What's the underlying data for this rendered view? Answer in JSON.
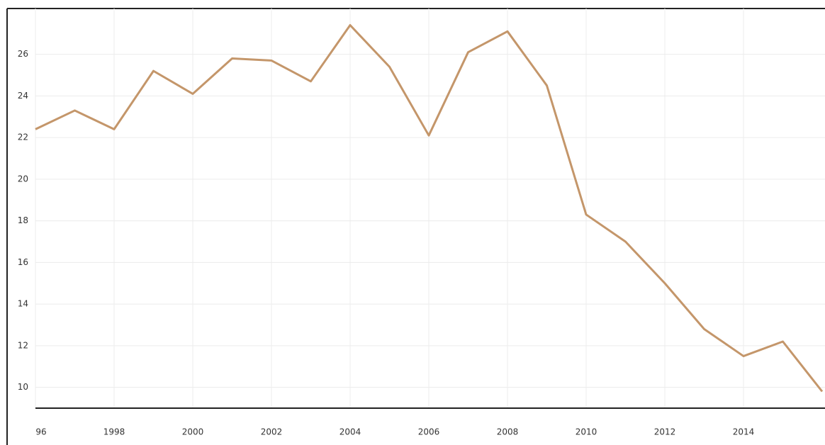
{
  "chart_data": {
    "type": "line",
    "x": [
      1996,
      1997,
      1998,
      1999,
      2000,
      2001,
      2002,
      2003,
      2004,
      2005,
      2006,
      2007,
      2008,
      2009,
      2010,
      2011,
      2012,
      2013,
      2014,
      2015,
      2016
    ],
    "values": [
      22.4,
      23.3,
      22.4,
      25.2,
      24.1,
      25.8,
      25.7,
      24.7,
      27.4,
      25.4,
      22.1,
      26.1,
      27.1,
      24.5,
      18.3,
      17.0,
      15.0,
      12.8,
      11.5,
      12.2,
      9.8
    ],
    "color": "#c4966a",
    "xlim": [
      1996,
      2016
    ],
    "xticks": [
      {
        "value": 1996,
        "label": "96"
      },
      1998,
      2000,
      2002,
      2004,
      2006,
      2008,
      2010,
      2012,
      2014
    ],
    "ylim": [
      9,
      28.2
    ],
    "yticks": [
      10,
      12,
      14,
      16,
      18,
      20,
      22,
      24,
      26
    ],
    "grid": true
  }
}
